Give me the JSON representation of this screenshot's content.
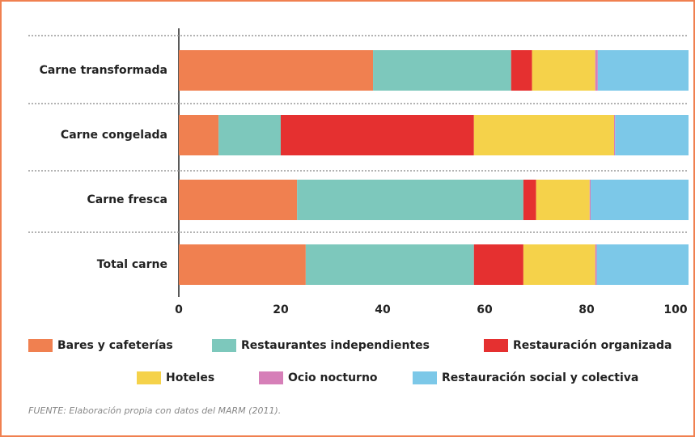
{
  "chart_data": {
    "type": "stacked_barh",
    "categories": [
      "Carne transformada",
      "Carne congelada",
      "Carne fresca",
      "Total carne"
    ],
    "series": [
      {
        "name": "Bares y cafeterías",
        "color": "#f08050",
        "values": [
          38.1,
          7.8,
          23.2,
          24.9
        ]
      },
      {
        "name": "Restaurantes independientes",
        "color": "#7dc8bc",
        "values": [
          27.1,
          12.2,
          44.4,
          33.0
        ]
      },
      {
        "name": "Restauración organizada",
        "color": "#e53030",
        "values": [
          4.1,
          37.9,
          2.5,
          9.7
        ]
      },
      {
        "name": "Hoteles",
        "color": "#f5d24a",
        "values": [
          12.4,
          27.5,
          10.5,
          14.1
        ]
      },
      {
        "name": "Ocio nocturno",
        "color": "#d67fb8",
        "values": [
          0.5,
          0.2,
          0.2,
          0.3
        ]
      },
      {
        "name": "Restauración social y colectiva",
        "color": "#7cc8e8",
        "values": [
          17.8,
          14.4,
          19.2,
          18.0
        ]
      }
    ],
    "xlim": [
      0,
      100
    ],
    "xticks": [
      0,
      20,
      40,
      60,
      80,
      100
    ],
    "source": "FUENTE: Elaboración propia con datos del MARM (2011)."
  }
}
